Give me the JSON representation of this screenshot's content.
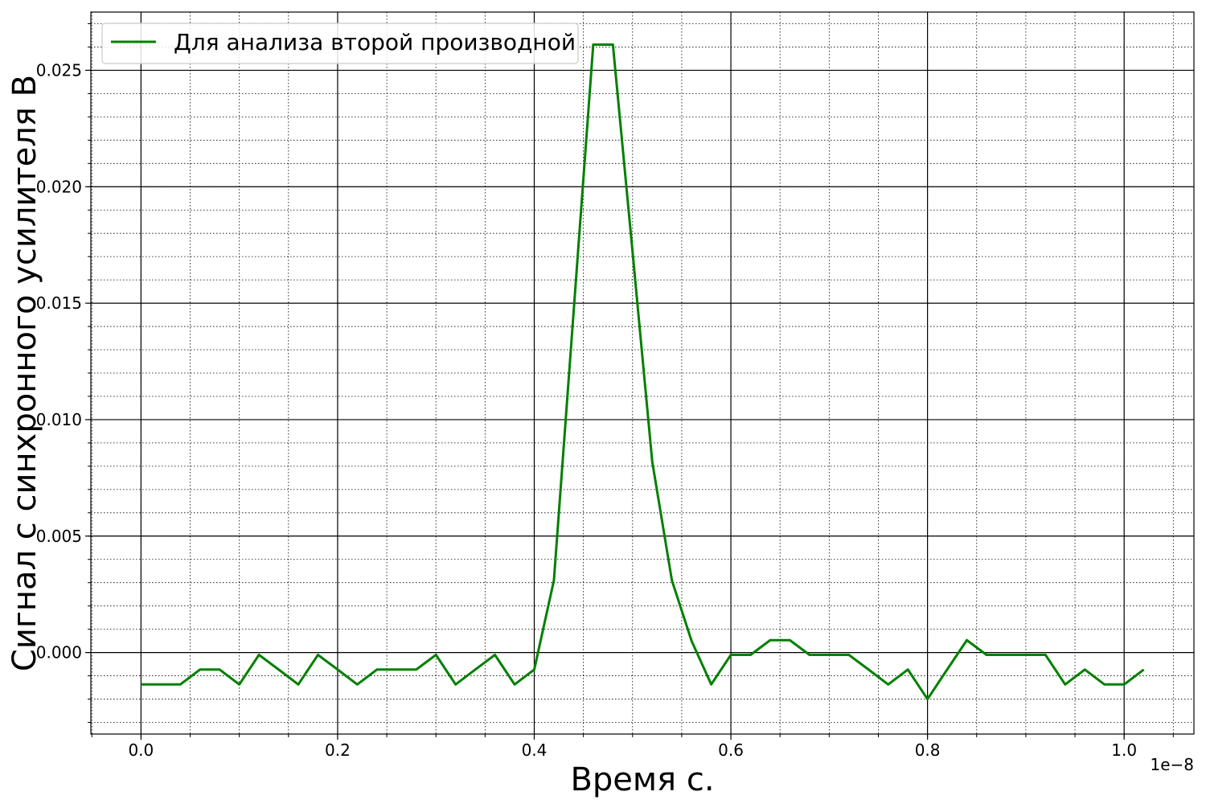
{
  "chart_data": {
    "type": "line",
    "xlabel": "Время с.",
    "ylabel": "Сигнал с синхронного усилителя В",
    "x_offset_label": "1e−8",
    "xlim": [
      -0.051,
      1.071
    ],
    "ylim": [
      -0.0035,
      0.0275
    ],
    "x_ticks": [
      0.0,
      0.2,
      0.4,
      0.6,
      0.8,
      1.0
    ],
    "x_tick_labels": [
      "0.0",
      "0.2",
      "0.4",
      "0.6",
      "0.8",
      "1.0"
    ],
    "y_ticks": [
      0.0,
      0.005,
      0.01,
      0.015,
      0.02,
      0.025
    ],
    "y_tick_labels": [
      "0.000",
      "0.005",
      "0.010",
      "0.015",
      "0.020",
      "0.025"
    ],
    "grid": true,
    "minor_grid": true,
    "legend_position": "top-left",
    "series": [
      {
        "name": "Для анализа второй производной",
        "color": "#008000",
        "x": [
          0.0,
          0.02,
          0.04,
          0.06,
          0.08,
          0.1,
          0.12,
          0.14,
          0.16,
          0.18,
          0.2,
          0.22,
          0.24,
          0.26,
          0.28,
          0.3,
          0.32,
          0.34,
          0.36,
          0.38,
          0.4,
          0.42,
          0.44,
          0.46,
          0.48,
          0.5,
          0.52,
          0.54,
          0.56,
          0.58,
          0.6,
          0.62,
          0.64,
          0.66,
          0.68,
          0.7,
          0.72,
          0.74,
          0.76,
          0.78,
          0.8,
          0.82,
          0.84,
          0.86,
          0.88,
          0.9,
          0.92,
          0.94,
          0.96,
          0.98,
          1.0,
          1.02
        ],
        "y": [
          -0.00137,
          -0.00137,
          -0.00137,
          -0.00073,
          -0.00073,
          -0.00137,
          -0.0001,
          -0.00073,
          -0.00137,
          -0.0001,
          -0.00073,
          -0.00137,
          -0.00073,
          -0.00073,
          -0.00073,
          -0.0001,
          -0.00137,
          -0.00073,
          -0.0001,
          -0.00137,
          -0.00073,
          0.0031,
          0.0146,
          0.0261,
          0.0261,
          0.0172,
          0.0082,
          0.0031,
          0.0005,
          -0.00137,
          -0.0001,
          -0.0001,
          0.00053,
          0.00053,
          -0.0001,
          -0.0001,
          -0.0001,
          -0.00073,
          -0.00137,
          -0.00073,
          -0.002,
          -0.00073,
          0.00053,
          -0.0001,
          -0.0001,
          -0.0001,
          -0.0001,
          -0.00137,
          -0.00073,
          -0.00137,
          -0.00137,
          -0.00073
        ]
      }
    ]
  }
}
